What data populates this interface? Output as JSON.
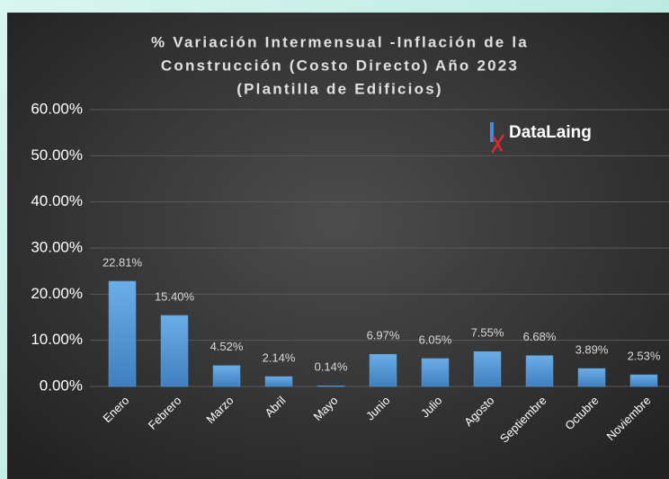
{
  "chart_data": {
    "type": "bar",
    "title": [
      "% Variación Intermensual -Inflación de la",
      "Construcción (Costo Directo) Año 2023",
      "(Plantilla de Edificios)"
    ],
    "logo": "DataLaing",
    "categories": [
      "Enero",
      "Febrero",
      "Marzo",
      "Abril",
      "Mayo",
      "Junio",
      "Julio",
      "Agosto",
      "Septiembre",
      "Octubre",
      "Noviembre"
    ],
    "values": [
      22.81,
      15.4,
      4.52,
      2.14,
      0.14,
      6.97,
      6.05,
      7.55,
      6.68,
      3.89,
      2.53
    ],
    "value_labels": [
      "22.81%",
      "15.40%",
      "4.52%",
      "2.14%",
      "0.14%",
      "6.97%",
      "6.05%",
      "7.55%",
      "6.68%",
      "3.89%",
      "2.53%"
    ],
    "color": "#5b9bd5",
    "ylim": [
      0,
      60
    ],
    "yticks": [
      {
        "value": 0,
        "label": "0.00%"
      },
      {
        "value": 10,
        "label": "10.00%"
      },
      {
        "value": 20,
        "label": "20.00%"
      },
      {
        "value": 30,
        "label": "30.00%"
      },
      {
        "value": 40,
        "label": "40.00%"
      },
      {
        "value": 50,
        "label": "50.00%"
      },
      {
        "value": 60,
        "label": "60.00%"
      }
    ],
    "grid": true
  }
}
